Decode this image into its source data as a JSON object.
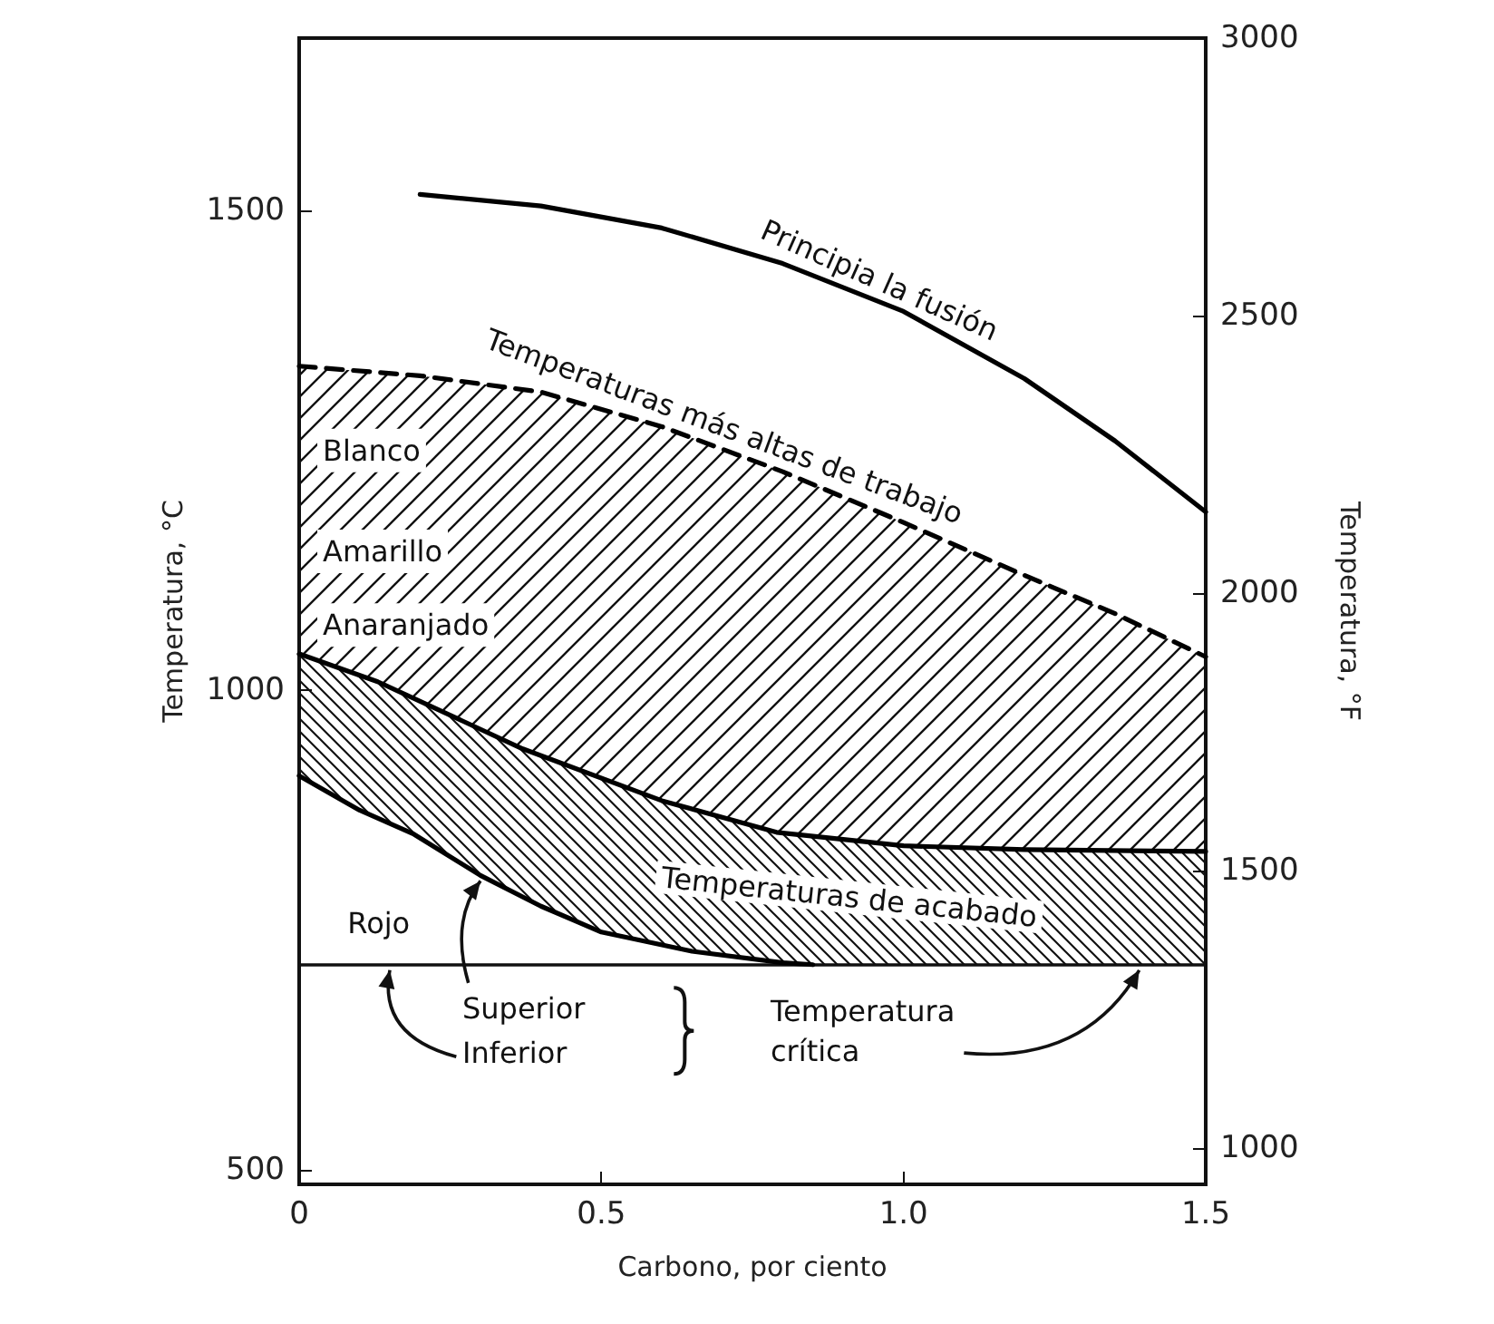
{
  "chart_data": {
    "type": "line",
    "xlabel": "Carbono, por ciento",
    "ylabel": "Temperatura, °C",
    "y2label": "Temperatura, °F",
    "xlim": [
      0,
      1.5
    ],
    "xticks": [
      0,
      0.5,
      {
        "value": 1,
        "label": "1.0"
      },
      1.5
    ],
    "ylim": [
      485,
      1680
    ],
    "yticks": [
      500,
      1000,
      1500
    ],
    "y2lim": [
      935,
      3000
    ],
    "y2ticks": [
      1000,
      1500,
      2000,
      2500,
      3000
    ],
    "marker": "none",
    "series": [
      {
        "name": "Principia la fusión",
        "color": "#000000",
        "line_style": "solid",
        "x": [
          0.2,
          0.4,
          0.6,
          0.8,
          1.0,
          1.2,
          1.35,
          1.5
        ],
        "values": [
          1517,
          1505,
          1482,
          1445,
          1395,
          1325,
          1260,
          1186
        ]
      },
      {
        "name": "Temperaturas más altas de trabajo",
        "color": "#000000",
        "line_style": "dashed",
        "x": [
          0,
          0.2,
          0.4,
          0.6,
          0.8,
          1.0,
          1.2,
          1.35,
          1.5
        ],
        "values": [
          1338,
          1328,
          1311,
          1275,
          1228,
          1175,
          1120,
          1080,
          1035
        ]
      },
      {
        "name": "Temperaturas de acabado",
        "color": "#000000",
        "line_style": "solid",
        "x": [
          0,
          0.13,
          0.37,
          0.6,
          0.79,
          1.0,
          1.2,
          1.5
        ],
        "values": [
          1038,
          1009,
          939,
          885,
          852,
          838,
          834,
          832
        ]
      },
      {
        "color": "#000000",
        "line_style": "solid",
        "x": [
          0,
          0.1,
          0.19,
          0.3,
          0.4,
          0.5,
          0.65,
          0.8,
          0.85
        ],
        "values": [
          911,
          875,
          850,
          807,
          775,
          748,
          728,
          716,
          714
        ]
      }
    ],
    "ref_lines": [
      {
        "axis": "y",
        "value": 714
      }
    ],
    "annotations": [
      "Blanco",
      "Amarillo",
      "Anaranjado",
      "Rojo",
      {
        "text": "Superior",
        "x": 0.3,
        "y": 807
      },
      {
        "text": "Inferior",
        "x": 0.15,
        "y": 714
      },
      {
        "text": "Temperatura crítica",
        "x": 1.39,
        "y": 714
      }
    ]
  }
}
